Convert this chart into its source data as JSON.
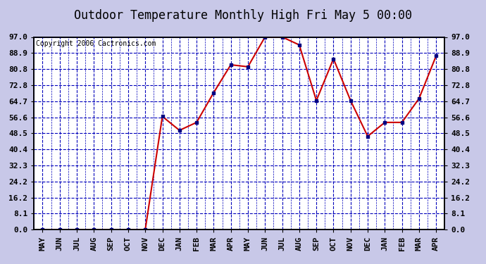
{
  "title": "Outdoor Temperature Monthly High Fri May 5 00:00",
  "copyright": "Copyright 2006 Cactronics.com",
  "months": [
    "MAY",
    "JUN",
    "JUL",
    "AUG",
    "SEP",
    "OCT",
    "NOV",
    "DEC",
    "JAN",
    "FEB",
    "MAR",
    "APR",
    "MAY",
    "JUN",
    "JUL",
    "AUG",
    "SEP",
    "OCT",
    "NOV",
    "DEC",
    "JAN",
    "FEB",
    "MAR",
    "APR"
  ],
  "values": [
    0.0,
    0.0,
    0.0,
    0.0,
    0.0,
    0.0,
    0.0,
    57.0,
    50.0,
    54.0,
    69.0,
    83.0,
    82.0,
    97.0,
    97.0,
    93.0,
    65.0,
    86.0,
    65.0,
    47.0,
    54.0,
    54.0,
    66.0,
    87.5
  ],
  "ylim": [
    0.0,
    97.0
  ],
  "yticks": [
    0.0,
    8.1,
    16.2,
    24.2,
    32.3,
    40.4,
    48.5,
    56.6,
    64.7,
    72.8,
    80.8,
    88.9,
    97.0
  ],
  "outer_bg": "#c8c8e8",
  "plot_bg": "#ffffff",
  "line_color": "#cc0000",
  "marker_color": "#000080",
  "grid_major_color": "#0000bb",
  "grid_minor_color": "#8888cc",
  "title_fontsize": 12,
  "copyright_fontsize": 7,
  "tick_fontsize": 8,
  "border_color": "#000000"
}
